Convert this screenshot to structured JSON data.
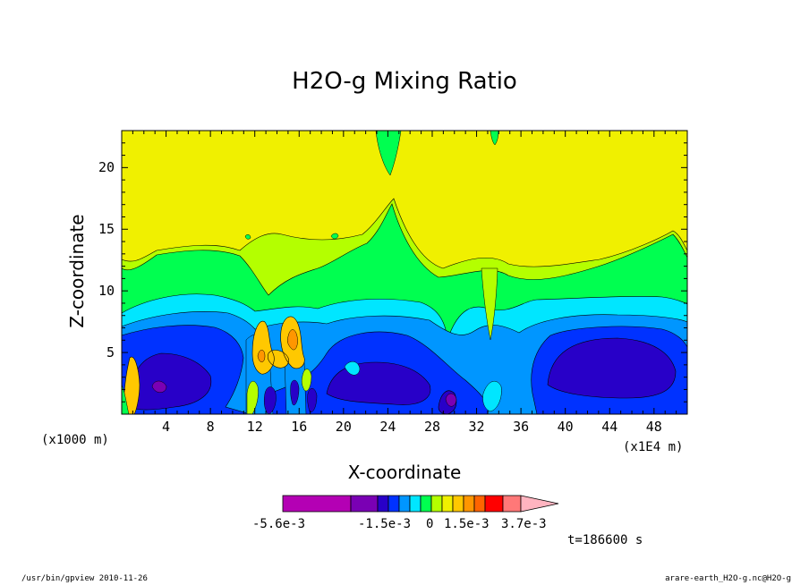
{
  "chart_data": {
    "type": "heatmap",
    "title": "H2O-g Mixing Ratio",
    "xlabel": "X-coordinate",
    "ylabel": "Z-coordinate",
    "x_unit_left": "(x1000 m)",
    "x_unit_right": "(x1E4 m)",
    "xlim": [
      0,
      51
    ],
    "ylim": [
      0,
      23
    ],
    "x_ticks": [
      4,
      8,
      12,
      16,
      20,
      24,
      28,
      32,
      36,
      40,
      44,
      48
    ],
    "y_ticks": [
      5,
      10,
      15,
      20
    ],
    "colorbar": {
      "colors": [
        "#b400b4",
        "#7a00b4",
        "#2800c8",
        "#0032ff",
        "#0096ff",
        "#00e6ff",
        "#00ff50",
        "#b4ff00",
        "#f0f000",
        "#ffc800",
        "#ff9600",
        "#ff6400",
        "#ff0000",
        "#ff7878",
        "#ffb4c0"
      ],
      "labels": [
        "-5.6e-3",
        "-1.5e-3",
        "0",
        "1.5e-3",
        "3.7e-3"
      ]
    },
    "time_label": "t=186600 s"
  },
  "footer": {
    "left": "/usr/bin/gpview  2010-11-26",
    "right": "arare-earth_H2O-g.nc@H2O-g"
  }
}
